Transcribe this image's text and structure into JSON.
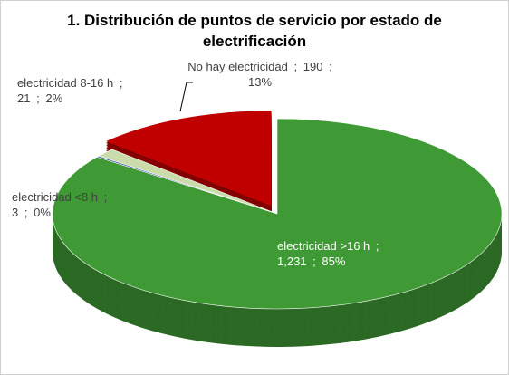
{
  "chart_data": {
    "type": "pie3d",
    "title": "1. Distribución de puntos de servicio por estado de electrificación",
    "categories": [
      "electricidad >16 h",
      "electricidad <8 h",
      "electricidad 8-16 h",
      "No hay electricidad"
    ],
    "values": [
      1231,
      3,
      21,
      190
    ],
    "value_labels": [
      "1,231",
      "3",
      "21",
      "190"
    ],
    "percents": [
      85,
      0,
      2,
      13
    ],
    "percent_labels": [
      "85%",
      "0%",
      "2%",
      "13%"
    ],
    "label_separator": ";",
    "colors": [
      "#3f9a35",
      "#3b4fa0",
      "#c9dcaa",
      "#c00000"
    ],
    "exploded": [
      false,
      false,
      false,
      true
    ]
  }
}
